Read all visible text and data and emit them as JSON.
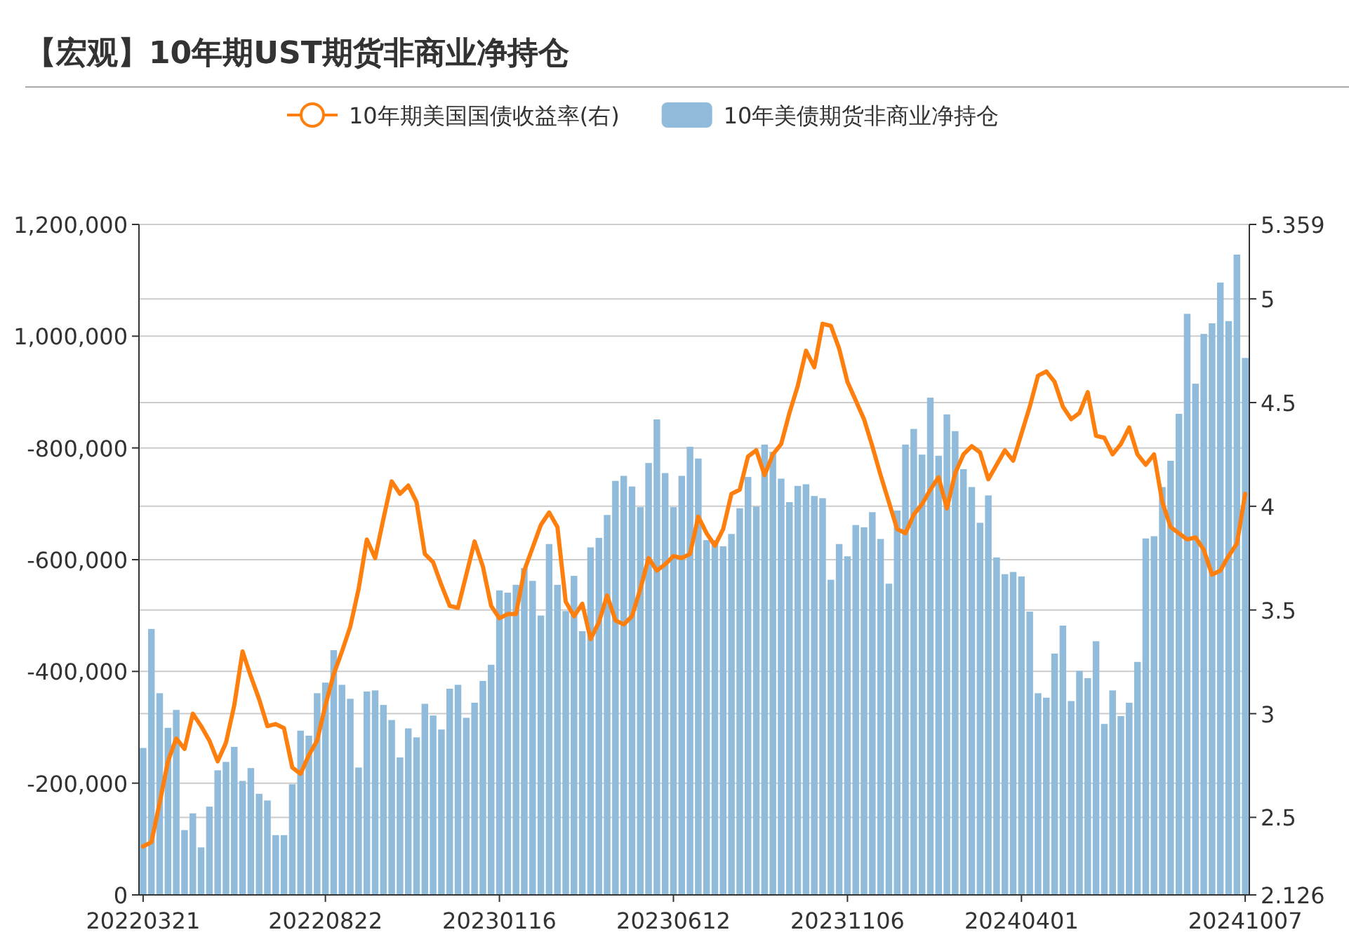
{
  "chart_data": {
    "type": "bar",
    "title": "【宏观】10年期UST期货非商业净持仓",
    "categories": [
      "20220321",
      null,
      null,
      null,
      null,
      null,
      null,
      null,
      null,
      null,
      null,
      null,
      null,
      null,
      null,
      null,
      null,
      null,
      null,
      null,
      null,
      null,
      "20220822",
      null,
      null,
      null,
      null,
      null,
      null,
      null,
      null,
      null,
      null,
      null,
      null,
      null,
      null,
      null,
      null,
      null,
      null,
      null,
      null,
      "20230116",
      null,
      null,
      null,
      null,
      null,
      null,
      null,
      null,
      null,
      null,
      null,
      null,
      null,
      null,
      null,
      null,
      null,
      null,
      null,
      null,
      "20230612",
      null,
      null,
      null,
      null,
      null,
      null,
      null,
      null,
      null,
      null,
      null,
      null,
      null,
      null,
      null,
      null,
      null,
      null,
      null,
      null,
      "20231106",
      null,
      null,
      null,
      null,
      null,
      null,
      null,
      null,
      null,
      null,
      null,
      null,
      null,
      null,
      null,
      null,
      null,
      null,
      null,
      null,
      "20240401",
      null,
      null,
      null,
      null,
      null,
      null,
      null,
      null,
      null,
      null,
      null,
      null,
      null,
      null,
      null,
      null,
      null,
      null,
      null,
      null,
      null,
      null,
      null,
      null,
      null,
      null,
      "20241007"
    ],
    "series": [
      {
        "name": "10年期美国国债收益率(右)",
        "type": "line",
        "axis": "y2",
        "color": "#ff7f0e",
        "values": [
          2.36,
          2.38,
          2.57,
          2.77,
          2.88,
          2.83,
          3.0,
          2.94,
          2.87,
          2.77,
          2.86,
          3.04,
          3.3,
          3.18,
          3.07,
          2.94,
          2.95,
          2.93,
          2.74,
          2.71,
          2.8,
          2.87,
          3.04,
          3.19,
          3.3,
          3.42,
          3.6,
          3.84,
          3.75,
          3.94,
          4.12,
          4.06,
          4.1,
          4.02,
          3.77,
          3.73,
          3.62,
          3.52,
          3.51,
          3.67,
          3.83,
          3.71,
          3.52,
          3.46,
          3.48,
          3.48,
          3.69,
          3.8,
          3.91,
          3.97,
          3.9,
          3.54,
          3.47,
          3.53,
          3.36,
          3.44,
          3.57,
          3.45,
          3.43,
          3.47,
          3.6,
          3.75,
          3.69,
          3.72,
          3.76,
          3.75,
          3.77,
          3.95,
          3.87,
          3.81,
          3.89,
          4.06,
          4.08,
          4.24,
          4.27,
          4.15,
          4.25,
          4.3,
          4.45,
          4.58,
          4.75,
          4.67,
          4.88,
          4.87,
          4.76,
          4.6,
          4.51,
          4.42,
          4.29,
          4.15,
          4.02,
          3.89,
          3.87,
          3.96,
          4.01,
          4.08,
          4.14,
          3.99,
          4.16,
          4.25,
          4.29,
          4.26,
          4.13,
          4.2,
          4.27,
          4.22,
          4.35,
          4.48,
          4.63,
          4.65,
          4.6,
          4.48,
          4.42,
          4.45,
          4.55,
          4.34,
          4.33,
          4.25,
          4.3,
          4.38,
          4.25,
          4.2,
          4.25,
          4.02,
          3.9,
          3.87,
          3.84,
          3.85,
          3.79,
          3.67,
          3.69,
          3.76,
          3.82,
          4.06
        ]
      },
      {
        "name": "10年美债期货非商业净持仓",
        "type": "bar",
        "color": "#90bbda",
        "values": [
          -263000,
          -476000,
          -361000,
          -299000,
          -331000,
          -116000,
          -146000,
          -85000,
          -158000,
          -223000,
          -238000,
          -265000,
          -204000,
          -227000,
          -181000,
          -169000,
          -107000,
          -107000,
          -198000,
          -294000,
          -285000,
          -361000,
          -380000,
          -438000,
          -376000,
          -351000,
          -228000,
          -364000,
          -366000,
          -340000,
          -313000,
          -246000,
          -298000,
          -282000,
          -342000,
          -321000,
          -296000,
          -369000,
          -376000,
          -317000,
          -344000,
          -383000,
          -412000,
          -545000,
          -541000,
          -555000,
          -585000,
          -562000,
          -500000,
          -628000,
          -555000,
          -508000,
          -571000,
          -472000,
          -622000,
          -639000,
          -680000,
          -741000,
          -750000,
          -731000,
          -694000,
          -773000,
          -851000,
          -755000,
          -694000,
          -750000,
          -802000,
          -781000,
          -635000,
          -635000,
          -624000,
          -646000,
          -692000,
          -748000,
          -695000,
          -806000,
          -793000,
          -745000,
          -703000,
          -732000,
          -735000,
          -714000,
          -710000,
          -564000,
          -628000,
          -606000,
          -662000,
          -658000,
          -685000,
          -637000,
          -557000,
          -688000,
          -806000,
          -834000,
          -788000,
          -890000,
          -786000,
          -860000,
          -830000,
          -762000,
          -730000,
          -666000,
          -715000,
          -604000,
          -574000,
          -578000,
          -570000,
          -507000,
          -361000,
          -353000,
          -432000,
          -482000,
          -347000,
          -401000,
          -388000,
          -454000,
          -306000,
          -366000,
          -320000,
          -344000,
          -417000,
          -638000,
          -642000,
          -730000,
          -777000,
          -861000,
          -1040000,
          -915000,
          -1004000,
          -1023000,
          -1096000,
          -1027000,
          -1146000,
          -961000
        ]
      }
    ],
    "ylim": [
      0,
      -1200000
    ],
    "yticks": [
      {
        "value": 0,
        "label": "0"
      },
      {
        "value": -200000,
        "label": "-200,000"
      },
      {
        "value": -400000,
        "label": "-400,000"
      },
      {
        "value": -600000,
        "label": "-600,000"
      },
      {
        "value": -800000,
        "label": "-800,000"
      },
      {
        "value": -1000000,
        "label": "1,000,000"
      },
      {
        "value": -1200000,
        "label": "1,200,000"
      }
    ],
    "y2lim": [
      2.126,
      5.359
    ],
    "y2ticks": [
      2.126,
      2.5,
      3,
      3.5,
      4,
      4.5,
      5,
      5.359
    ],
    "grid": true,
    "legend": "top"
  }
}
